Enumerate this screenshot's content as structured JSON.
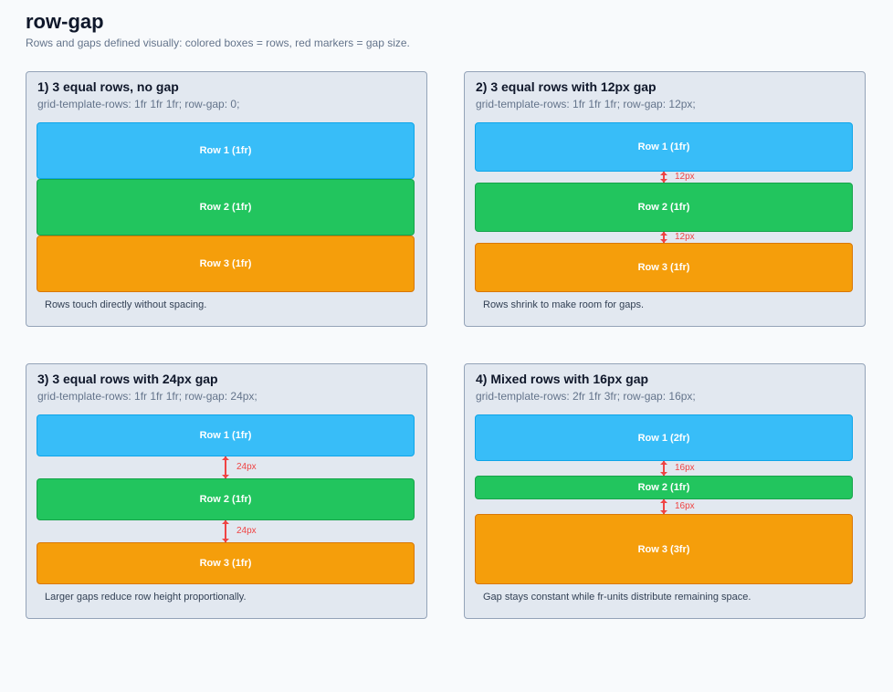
{
  "header": {
    "title": "row-gap",
    "subtitle": "Rows and gaps defined visually: colored boxes = rows, red markers = gap size."
  },
  "panels": [
    {
      "title": "1) 3 equal rows, no gap",
      "code": "grid-template-rows: 1fr 1fr 1fr; row-gap: 0;",
      "rows": [
        "Row 1 (1fr)",
        "Row 2 (1fr)",
        "Row 3 (1fr)"
      ],
      "gaps": [],
      "note": "Rows touch directly without spacing."
    },
    {
      "title": "2) 3 equal rows with 12px gap",
      "code": "grid-template-rows: 1fr 1fr 1fr; row-gap: 12px;",
      "rows": [
        "Row 1 (1fr)",
        "Row 2 (1fr)",
        "Row 3 (1fr)"
      ],
      "gaps": [
        "12px",
        "12px"
      ],
      "note": "Rows shrink to make room for gaps."
    },
    {
      "title": "3) 3 equal rows with 24px gap",
      "code": "grid-template-rows: 1fr 1fr 1fr; row-gap: 24px;",
      "rows": [
        "Row 1 (1fr)",
        "Row 2 (1fr)",
        "Row 3 (1fr)"
      ],
      "gaps": [
        "24px",
        "24px"
      ],
      "note": "Larger gaps reduce row height proportionally."
    },
    {
      "title": "4) Mixed rows with 16px gap",
      "code": "grid-template-rows: 2fr 1fr 3fr; row-gap: 16px;",
      "rows": [
        "Row 1 (2fr)",
        "Row 2 (1fr)",
        "Row 3 (3fr)"
      ],
      "gaps": [
        "16px",
        "16px"
      ],
      "note": "Gap stays constant while fr-units distribute remaining space."
    }
  ]
}
